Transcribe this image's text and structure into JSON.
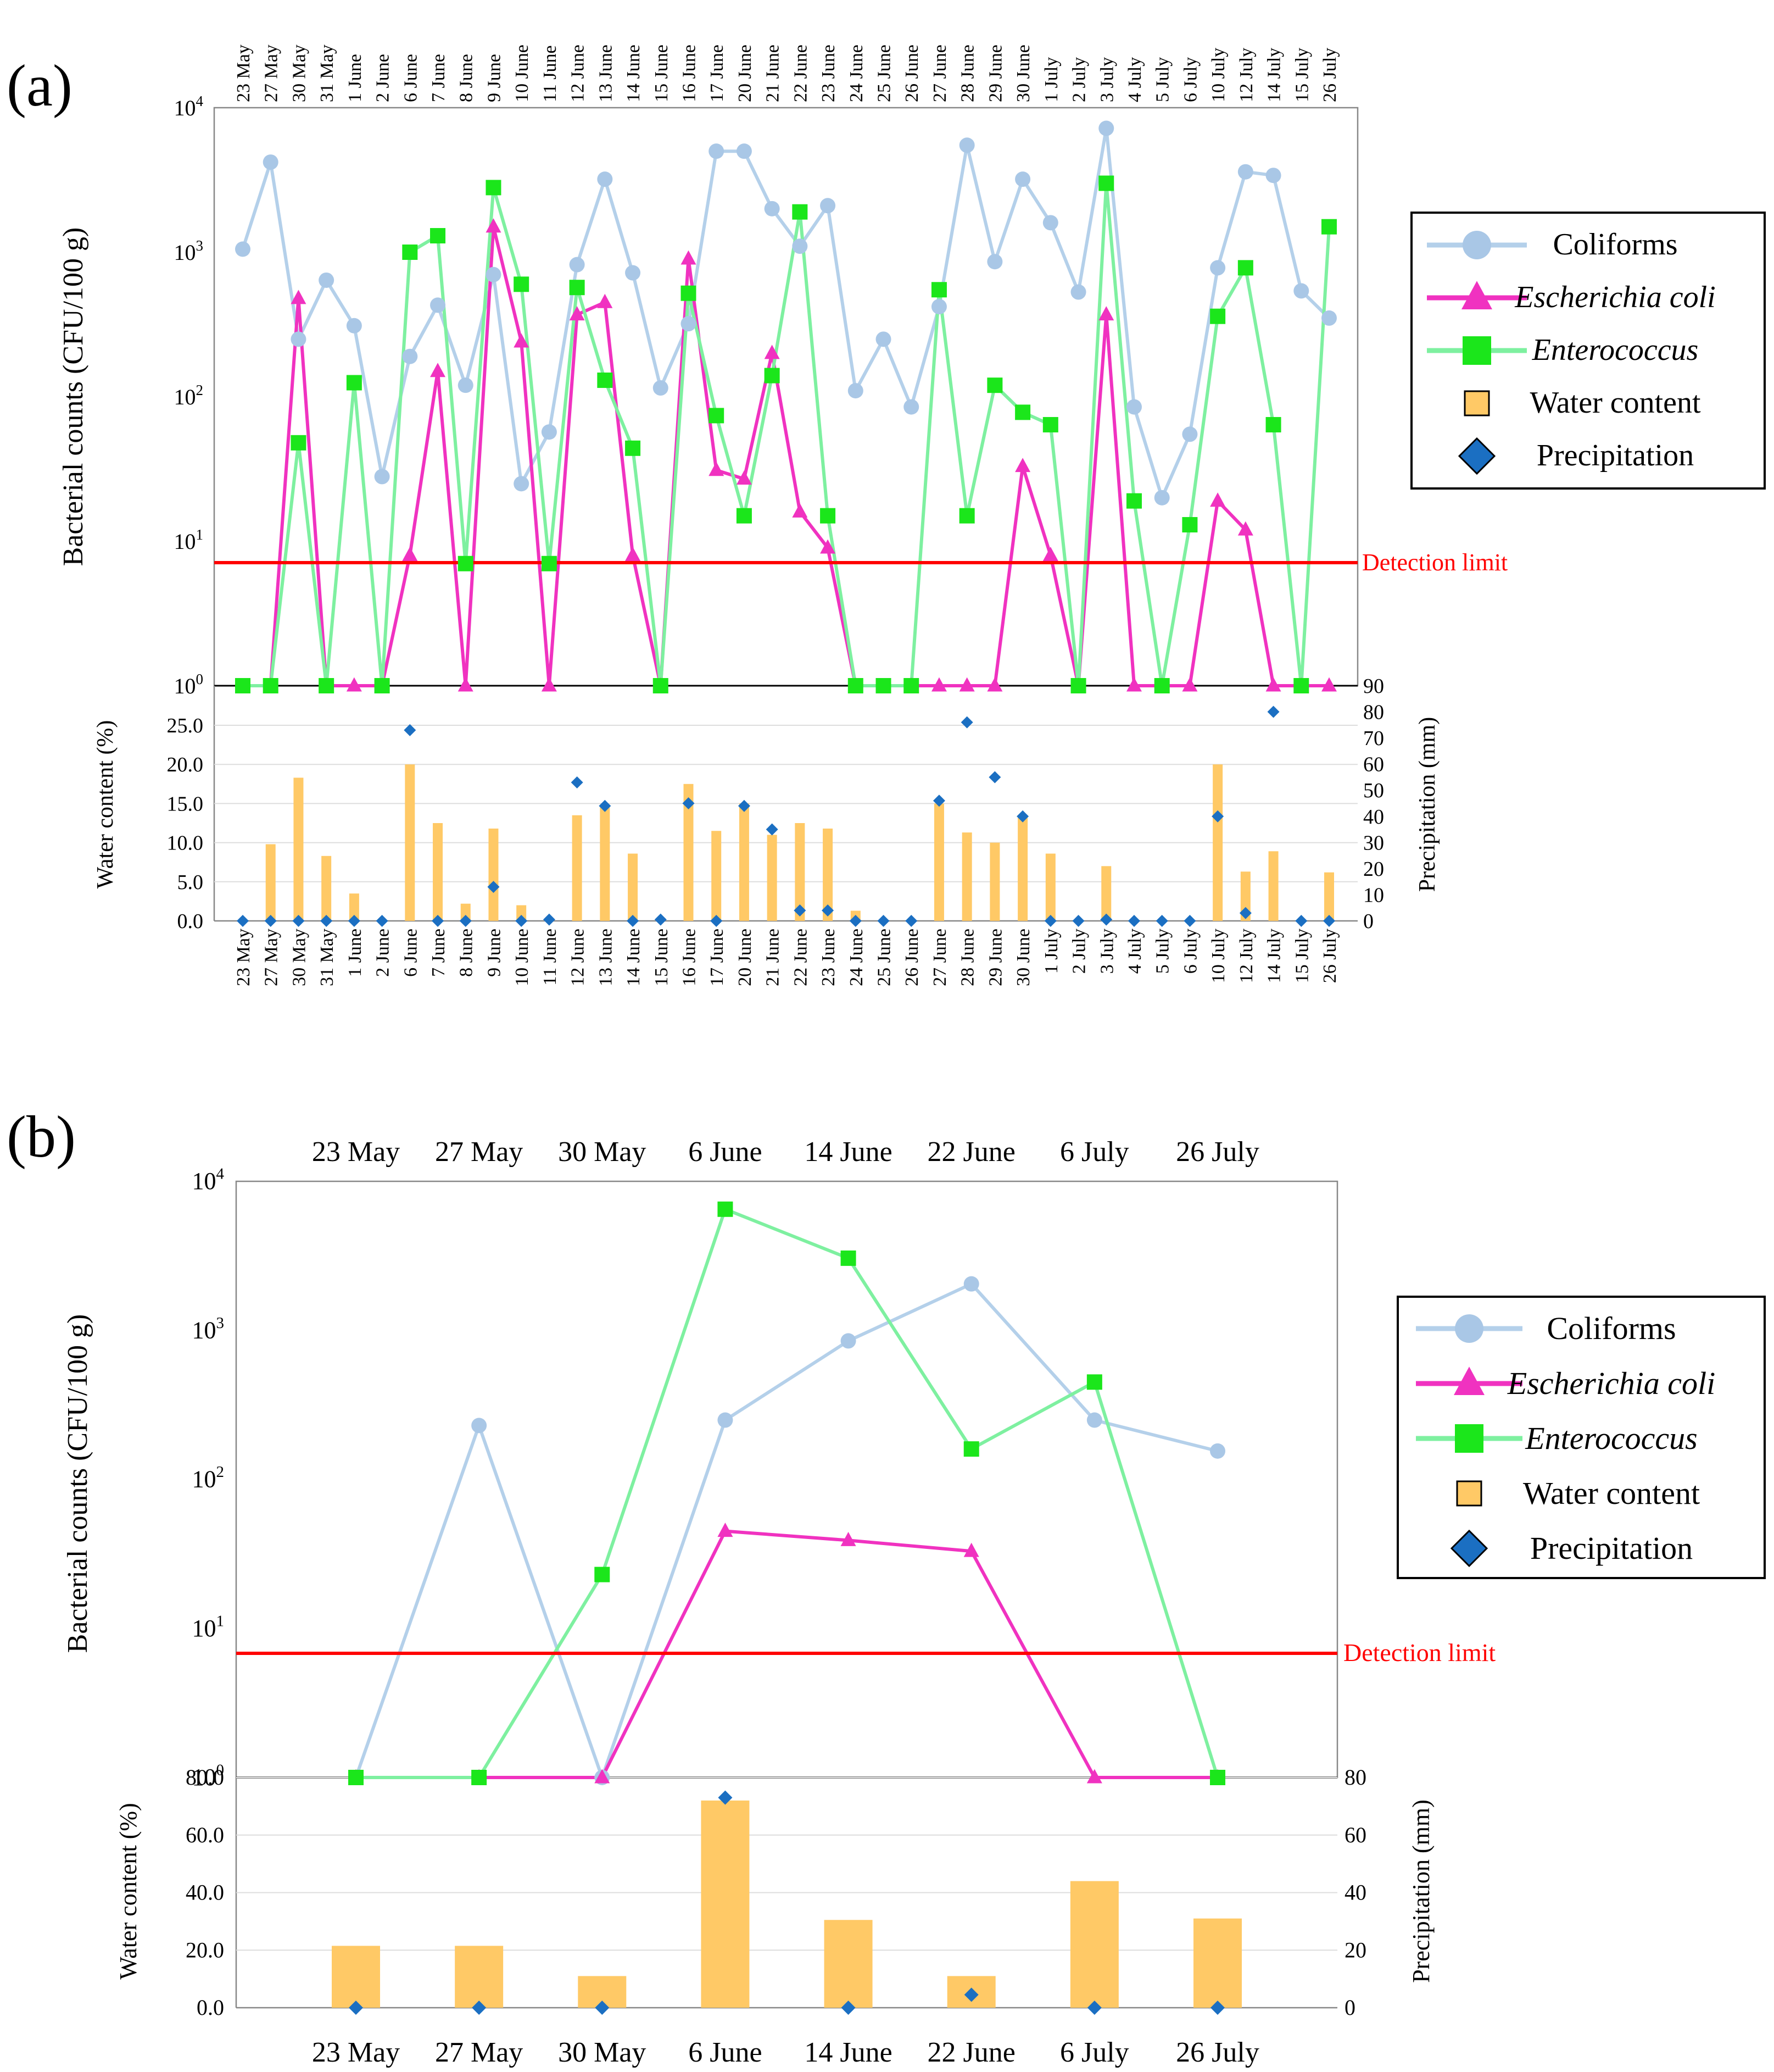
{
  "panel_labels": [
    "(a)",
    "(b)"
  ],
  "legend": {
    "coliforms": "Coliforms",
    "ecoli": "Escherichia coli",
    "enterococcus": "Enterococcus",
    "water": "Water content",
    "precip": "Precipitation"
  },
  "detection_limit_label": "Detection limit",
  "colors": {
    "coliforms": "#b4d0ea",
    "coliforms_marker": "#a9c7e6",
    "ecoli": "#f032c0",
    "enterococcus": "#7ef0a0",
    "enterococcus_marker": "#1be61b",
    "water": "#ffc966",
    "precip": "#1b6fc2",
    "detection": "#ff0000"
  },
  "chart_data": [
    {
      "panel": "(a)",
      "type": "line",
      "scale": "log",
      "ylabel": "Bacterial counts (CFU/100 g)",
      "ylim": [
        1,
        10000
      ],
      "yticks": [
        "10^0",
        "10^1",
        "10^2",
        "10^3",
        "10^4"
      ],
      "detection_limit": 7,
      "categories": [
        "23 May",
        "27 May",
        "30 May",
        "31 May",
        "1 June",
        "2 June",
        "6 June",
        "7 June",
        "8 June",
        "9 June",
        "10 June",
        "11 June",
        "12 June",
        "13 June",
        "14 June",
        "15 June",
        "16 June",
        "17 June",
        "20 June",
        "21 June",
        "22 June",
        "23 June",
        "24 June",
        "25 June",
        "26 June",
        "27 June",
        "28 June",
        "29 June",
        "30 June",
        "1 July",
        "2 July",
        "3 July",
        "4 July",
        "5 July",
        "6 July",
        "10 July",
        "12 July",
        "14 July",
        "15 July",
        "26 July"
      ],
      "series": [
        {
          "name": "Coliforms",
          "values": [
            1050,
            4200,
            250,
            640,
            310,
            28,
            190,
            430,
            120,
            700,
            25,
            57,
            820,
            3200,
            720,
            115,
            320,
            5000,
            5000,
            2000,
            1100,
            2100,
            110,
            250,
            85,
            420,
            5500,
            860,
            3200,
            1600,
            530,
            7200,
            85,
            20,
            55,
            780,
            3600,
            3400,
            540,
            350
          ]
        },
        {
          "name": "Escherichia coli",
          "values": [
            null,
            1,
            480,
            1,
            1,
            1,
            8,
            150,
            1,
            1500,
            240,
            1,
            370,
            450,
            8,
            1,
            900,
            31,
            27,
            200,
            16,
            9,
            1,
            null,
            1,
            1,
            1,
            1,
            33,
            8,
            1,
            370,
            1,
            1,
            1,
            19,
            12,
            1,
            1,
            1
          ]
        },
        {
          "name": "Enterococcus",
          "values": [
            1,
            1,
            48,
            1,
            125,
            1,
            1000,
            1300,
            7,
            2800,
            600,
            7,
            570,
            130,
            44,
            1,
            520,
            74,
            15,
            140,
            1900,
            15,
            1,
            1,
            1,
            550,
            15,
            120,
            78,
            64,
            1,
            3000,
            19,
            1,
            13,
            360,
            780,
            64,
            1,
            1500
          ]
        }
      ],
      "sub": {
        "ylabel_left": "Water content (%)",
        "ylabel_right": "Precipitation  (mm)",
        "left_ylim": [
          0,
          25
        ],
        "left_ticks": [
          "0.0",
          "5.0",
          "10.0",
          "15.0",
          "20.0",
          "25.0"
        ],
        "right_ylim": [
          0,
          90
        ],
        "right_ticks": [
          "0",
          "10",
          "20",
          "30",
          "40",
          "50",
          "60",
          "70",
          "80",
          "90"
        ],
        "water_content": [
          0,
          9.8,
          18.3,
          8.3,
          3.5,
          0,
          20,
          12.5,
          2.2,
          11.8,
          2,
          0,
          13.5,
          14.5,
          8.6,
          0,
          17.5,
          11.5,
          15,
          11,
          12.5,
          11.8,
          1.3,
          0,
          0,
          15,
          11.3,
          10,
          13.5,
          8.6,
          0,
          7,
          0,
          0,
          0,
          20,
          6.3,
          8.9,
          0,
          6.2
        ],
        "precipitation": [
          0,
          0,
          0,
          0,
          0,
          0,
          73,
          0,
          0,
          13,
          0,
          0.5,
          53,
          44,
          0,
          0.5,
          45,
          0,
          44,
          35,
          4,
          4,
          0,
          0,
          0,
          46,
          76,
          55,
          40,
          0,
          0,
          0.5,
          0,
          0,
          0,
          40,
          3,
          80,
          0,
          0
        ]
      }
    },
    {
      "panel": "(b)",
      "type": "line",
      "scale": "log",
      "ylabel": "Bacterial counts (CFU/100 g)",
      "ylim": [
        1,
        10000
      ],
      "yticks": [
        "10^0",
        "10^1",
        "10^2",
        "10^3",
        "10^4"
      ],
      "detection_limit": 7,
      "categories": [
        "23 May",
        "27 May",
        "30 May",
        "6 June",
        "14 June",
        "22 June",
        "6 July",
        "26 July"
      ],
      "series": [
        {
          "name": "Coliforms",
          "values": [
            1,
            230,
            1,
            250,
            850,
            2050,
            250,
            155
          ]
        },
        {
          "name": "Escherichia coli",
          "values": [
            1,
            1,
            1,
            45,
            39,
            33,
            1,
            1
          ]
        },
        {
          "name": "Enterococcus",
          "values": [
            1,
            1,
            23,
            6500,
            3050,
            160,
            450,
            1
          ]
        }
      ],
      "sub": {
        "ylabel_left": "Water content (%)",
        "ylabel_right": "Precipitation  (mm)",
        "left_ylim": [
          0,
          80
        ],
        "left_ticks": [
          "0.0",
          "20.0",
          "40.0",
          "60.0",
          "80.0"
        ],
        "right_ylim": [
          0,
          80
        ],
        "right_ticks": [
          "0",
          "20",
          "40",
          "60",
          "80"
        ],
        "water_content": [
          21.5,
          21.5,
          11,
          72,
          30.5,
          11,
          44,
          31
        ],
        "precipitation": [
          0,
          0,
          0,
          73,
          0,
          4.5,
          0,
          0
        ]
      }
    }
  ]
}
